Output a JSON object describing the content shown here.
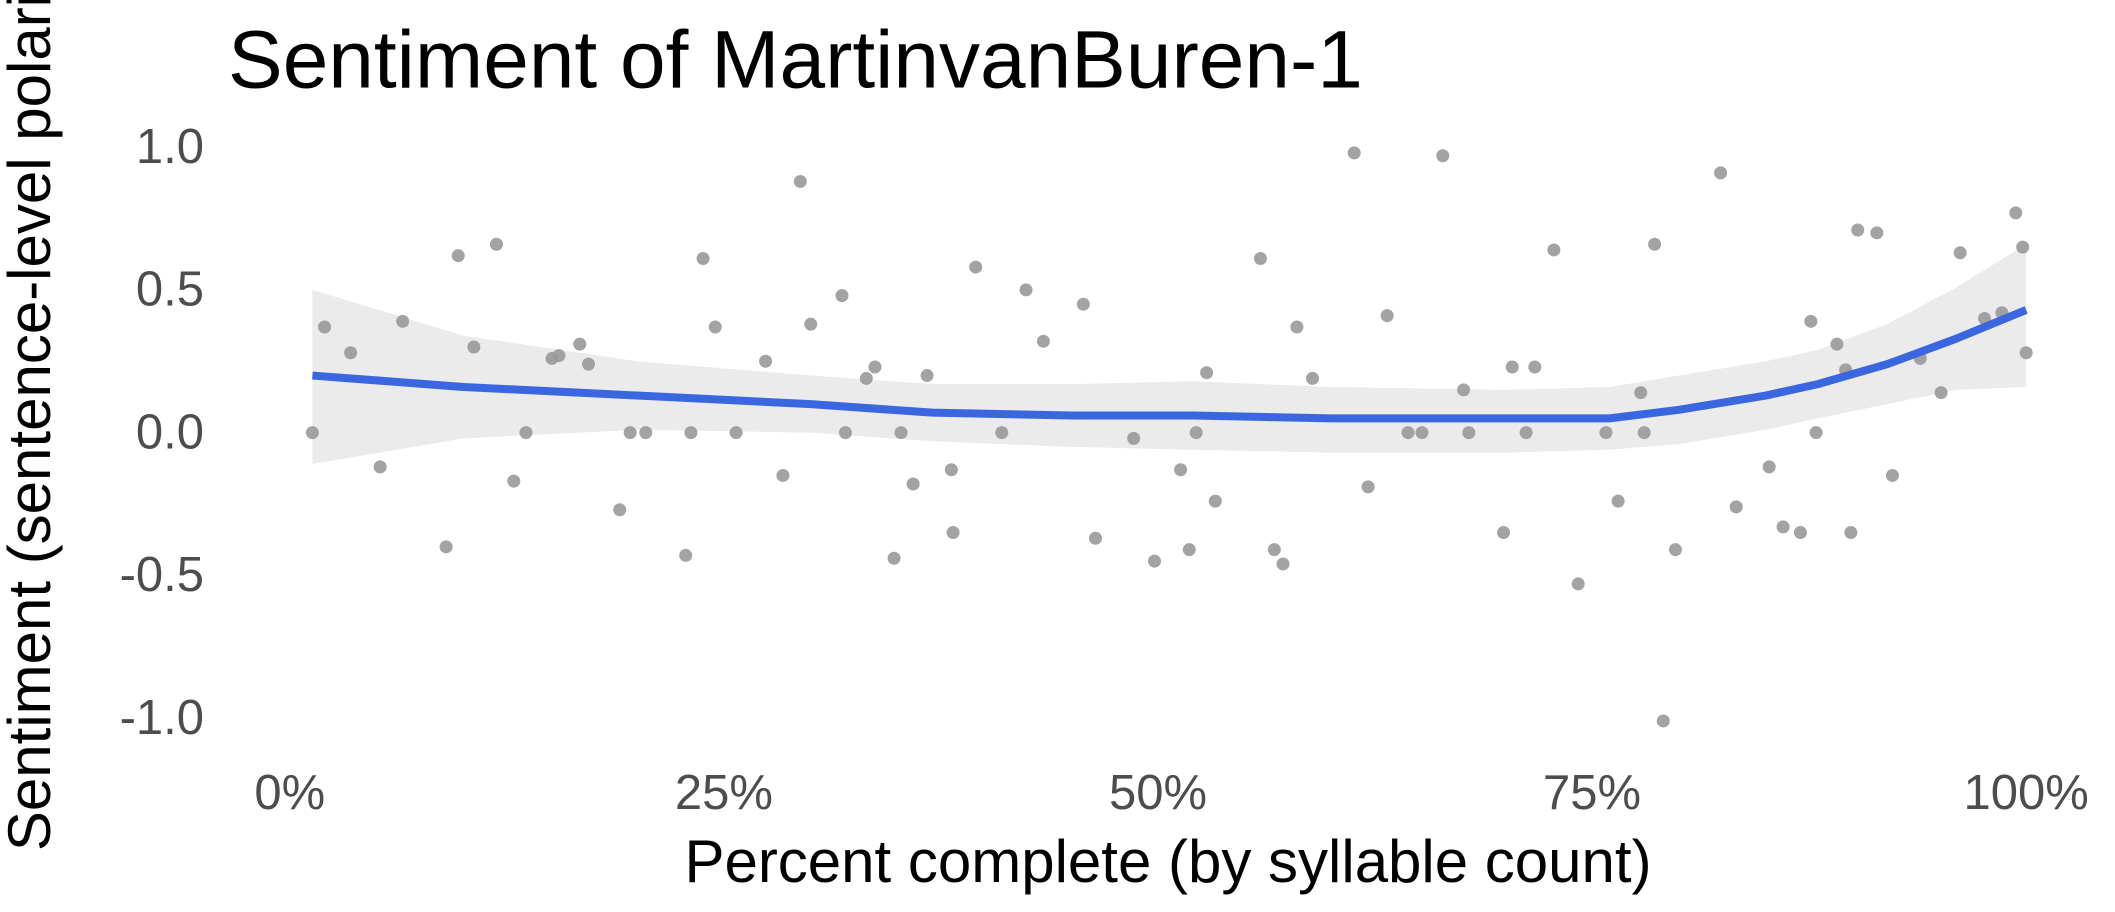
{
  "chart_data": {
    "type": "scatter",
    "title": "Sentiment of MartinvanBuren-1",
    "x_label": "Percent complete (by syllable count)",
    "y_label": "Sentiment (sentence-level polari",
    "x": [
      1.3,
      2.0,
      3.5,
      5.2,
      6.5,
      9.0,
      9.7,
      10.6,
      11.9,
      12.9,
      13.6,
      15.1,
      15.5,
      16.7,
      17.2,
      19.0,
      19.6,
      20.5,
      22.8,
      23.1,
      23.8,
      24.5,
      25.7,
      27.4,
      28.4,
      29.4,
      30.0,
      31.8,
      32.0,
      33.2,
      33.7,
      34.8,
      35.2,
      35.9,
      36.7,
      38.1,
      38.2,
      39.5,
      41.0,
      42.4,
      43.4,
      45.7,
      46.4,
      48.6,
      49.8,
      51.3,
      51.8,
      52.2,
      52.8,
      53.3,
      55.9,
      56.7,
      57.2,
      58.0,
      58.9,
      61.3,
      62.1,
      63.2,
      64.4,
      65.2,
      66.4,
      67.6,
      67.9,
      69.9,
      70.4,
      71.2,
      71.7,
      72.8,
      74.2,
      75.8,
      76.5,
      77.8,
      78.0,
      78.6,
      79.1,
      79.8,
      82.4,
      83.3,
      85.2,
      86.0,
      87.0,
      87.6,
      87.9,
      89.1,
      89.6,
      89.9,
      90.3,
      91.4,
      92.3,
      93.9,
      95.1,
      96.2,
      97.6,
      98.6,
      99.4,
      99.8,
      100
    ],
    "values": [
      0.01,
      0.38,
      0.29,
      -0.11,
      0.4,
      -0.39,
      0.63,
      0.31,
      0.67,
      -0.16,
      0.01,
      0.27,
      0.28,
      0.32,
      0.25,
      -0.26,
      0.01,
      0.01,
      -0.42,
      0.01,
      0.62,
      0.38,
      0.01,
      0.26,
      -0.14,
      0.89,
      0.39,
      0.49,
      0.01,
      0.2,
      0.24,
      -0.43,
      0.01,
      -0.17,
      0.21,
      -0.12,
      -0.34,
      0.59,
      0.01,
      0.51,
      0.33,
      0.46,
      -0.36,
      -0.01,
      -0.44,
      -0.12,
      -0.4,
      0.01,
      0.22,
      -0.23,
      0.62,
      -0.4,
      -0.45,
      0.38,
      0.2,
      0.99,
      -0.18,
      0.42,
      0.01,
      0.01,
      0.98,
      0.16,
      0.01,
      -0.34,
      0.24,
      0.01,
      0.24,
      0.65,
      -0.52,
      0.01,
      -0.23,
      0.15,
      0.01,
      0.67,
      -1.0,
      -0.4,
      0.92,
      -0.25,
      -0.11,
      -0.32,
      -0.34,
      0.4,
      0.01,
      0.32,
      0.23,
      -0.34,
      0.72,
      0.71,
      -0.14,
      0.27,
      0.15,
      0.64,
      0.41,
      0.43,
      0.78,
      0.66,
      0.29
    ],
    "color": "#999999",
    "smooth": {
      "color": "#3a66df",
      "band_color": "#ebebeb",
      "x": [
        1.3,
        10,
        20,
        30,
        37,
        45,
        52,
        60,
        70,
        76,
        80,
        85,
        88,
        92,
        96,
        100
      ],
      "values": [
        0.21,
        0.17,
        0.14,
        0.11,
        0.08,
        0.07,
        0.07,
        0.06,
        0.06,
        0.06,
        0.09,
        0.14,
        0.18,
        0.25,
        0.34,
        0.44
      ],
      "upper": [
        0.51,
        0.35,
        0.26,
        0.21,
        0.18,
        0.18,
        0.19,
        0.17,
        0.16,
        0.17,
        0.21,
        0.26,
        0.3,
        0.39,
        0.52,
        0.67
      ],
      "lower": [
        -0.1,
        -0.01,
        0.02,
        0.01,
        -0.02,
        -0.04,
        -0.05,
        -0.06,
        -0.06,
        -0.05,
        -0.03,
        0.02,
        0.06,
        0.11,
        0.16,
        0.17
      ]
    },
    "xlim": [
      -5,
      105
    ],
    "ylim": [
      -1.1,
      1.1
    ],
    "xticks": [
      {
        "value": 0,
        "label": "0%"
      },
      {
        "value": 25,
        "label": "25%"
      },
      {
        "value": 50,
        "label": "50%"
      },
      {
        "value": 75,
        "label": "75%"
      },
      {
        "value": 100,
        "label": "100%"
      }
    ],
    "yticks": [
      {
        "value": 1,
        "label": "1.0"
      },
      0.5,
      {
        "value": 0,
        "label": "0.0"
      },
      -0.5,
      {
        "value": -1,
        "label": "-1.0"
      }
    ],
    "grid": false
  }
}
